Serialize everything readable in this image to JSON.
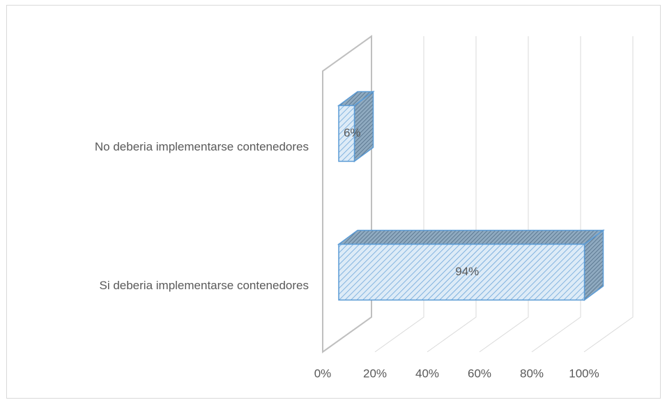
{
  "chart_data": {
    "type": "bar3d",
    "categories": [
      "No deberia  implementarse  contenedores",
      "Si deberia implementarse contenedores"
    ],
    "values": [
      6,
      94
    ],
    "value_labels": [
      "6%",
      "94%"
    ],
    "color": "#5b9bd5",
    "xlim": [
      0,
      100
    ],
    "xticks": [
      {
        "value": 0,
        "label": "0%"
      },
      {
        "value": 20,
        "label": "20%"
      },
      {
        "value": 40,
        "label": "40%"
      },
      {
        "value": 60,
        "label": "60%"
      },
      {
        "value": 80,
        "label": "80%"
      },
      {
        "value": 100,
        "label": "100%"
      }
    ],
    "grid": true
  }
}
